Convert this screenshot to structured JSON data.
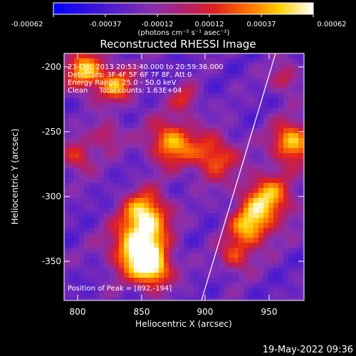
{
  "colorbar": {
    "ticks": [
      "-0.00062",
      "-0.00037",
      "-0.00012",
      "0.00012",
      "0.00037",
      "0.00062"
    ],
    "units": "(photons cm⁻² s⁻¹ asec⁻²)"
  },
  "title": "Reconstructed RHESSI Image",
  "info": {
    "line1": "23-Dec-2013 20:53:40.000 to 20:59:36.000",
    "line2": "Detectors: 3F 4F 5F 6F 7F 8F, Att 0",
    "line3": "Energy Range: 25.0 - 50.0 keV",
    "line4": "Clean     Total counts: 1.63E+04",
    "peak": "Position of Peak = [892,-194]"
  },
  "x_axis": {
    "label": "Heliocentric X (arcsec)",
    "ticks": [
      "800",
      "850",
      "900",
      "950"
    ]
  },
  "y_axis": {
    "label": "Heliocentric Y (arcsec)",
    "ticks": [
      "-200",
      "-250",
      "-300",
      "-350"
    ]
  },
  "footer_date": "19-May-2022 09:36",
  "colors": {
    "background": "#000000",
    "colormap_low": "#0000ff",
    "colormap_mid": "#c000c0",
    "colormap_high": "#ffffff"
  }
}
